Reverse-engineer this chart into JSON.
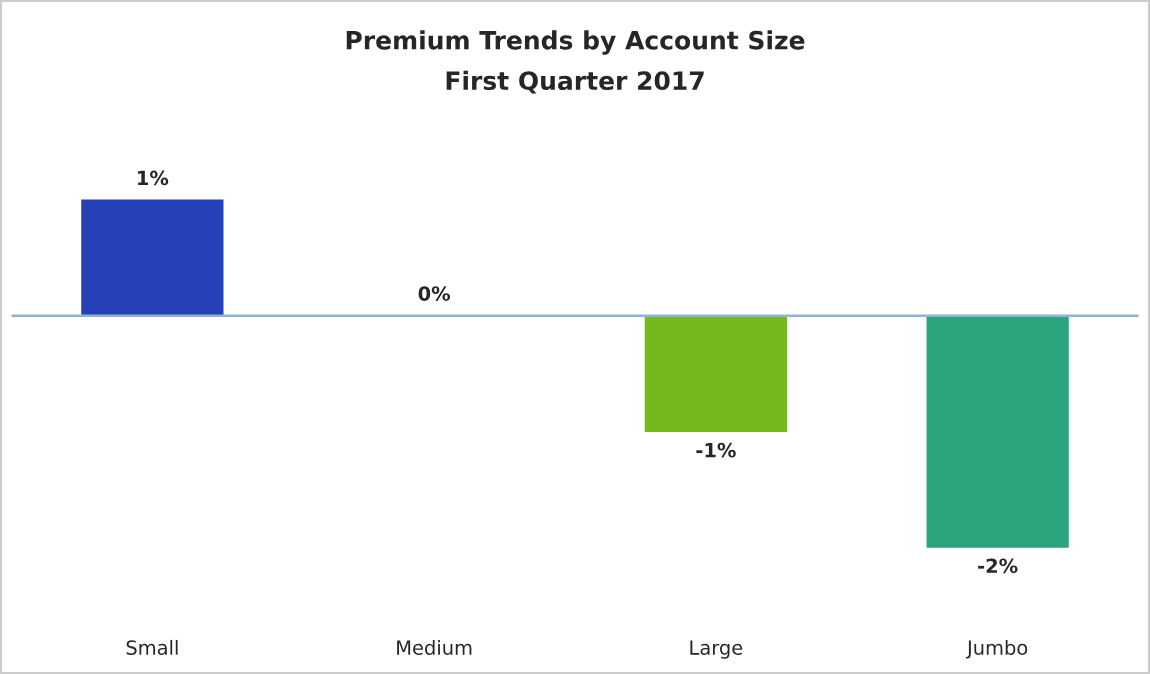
{
  "chart_data": {
    "type": "bar",
    "title": "Premium Trends by Account Size",
    "subtitle": "First Quarter 2017",
    "categories": [
      "Small",
      "Medium",
      "Large",
      "Jumbo"
    ],
    "values": [
      1,
      0,
      -1,
      -2
    ],
    "colors": [
      "#2640b8",
      "#e6eaee",
      "#74b81e",
      "#2aa57e"
    ],
    "value_labels": [
      "1%",
      "0%",
      "-1%",
      "-2%"
    ],
    "ref_lines": [
      {
        "axis": "y",
        "value": 0,
        "color": "#8fb3d0"
      }
    ],
    "tick_labels": "x",
    "grid": false,
    "legend": false
  }
}
